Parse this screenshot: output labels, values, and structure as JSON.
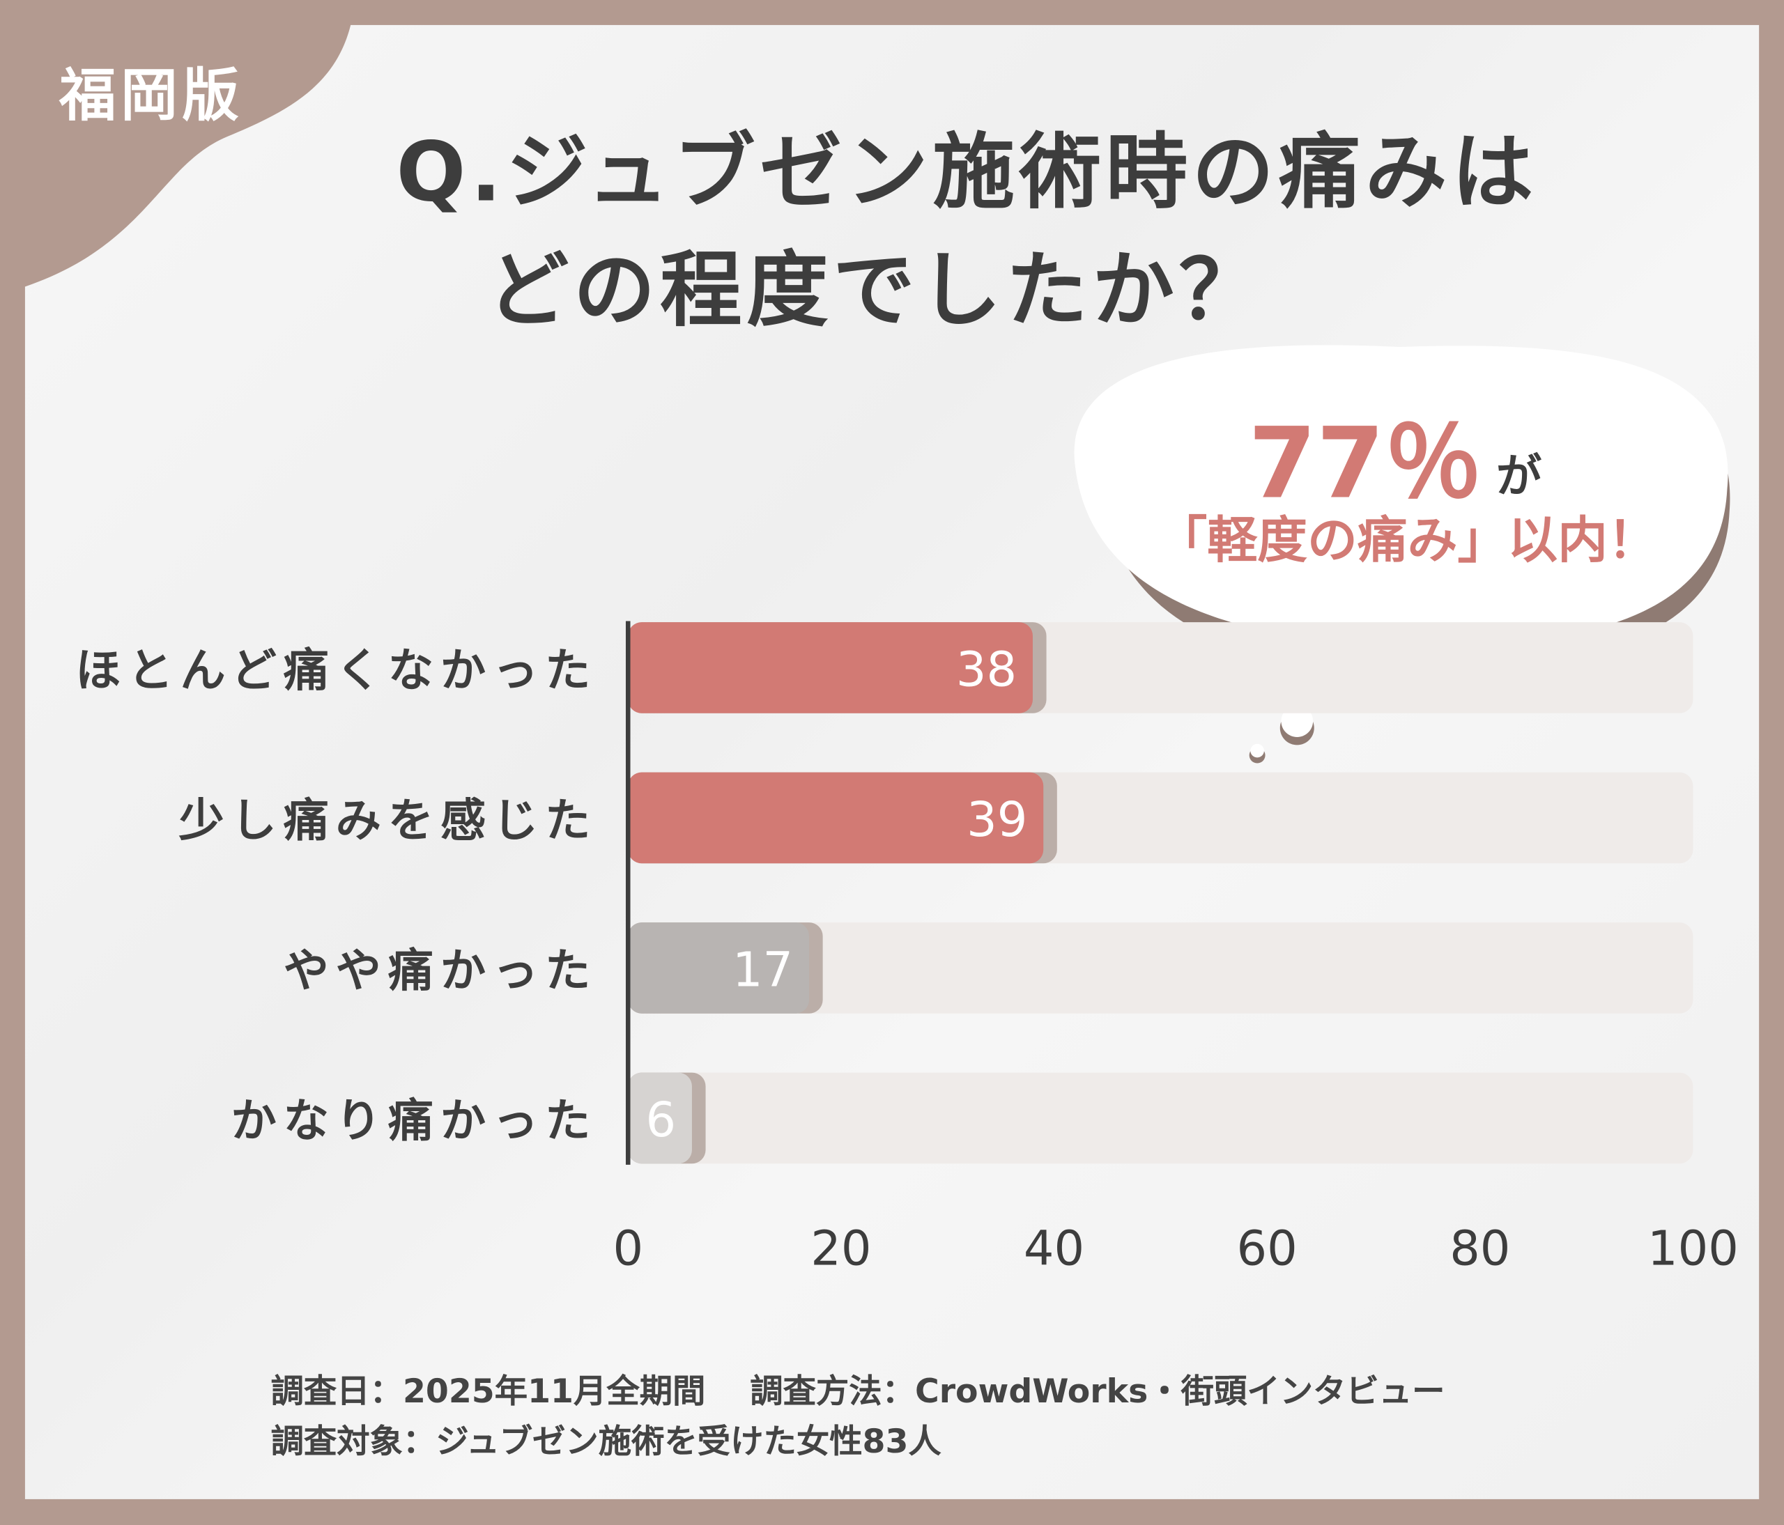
{
  "badge": "福岡版",
  "title": {
    "line1": "Q.ジュブゼン施術時の痛みは",
    "line2": "どの程度でしたか？"
  },
  "callout": {
    "percent": "77％",
    "particle": "が",
    "text": "「軽度の痛み」以内！"
  },
  "colors": {
    "frame": "#b39a90",
    "accent": "#d27a74",
    "gray": "#b8b4b2",
    "light_gray": "#d6d3d1",
    "track": "#efebe9",
    "text": "#3d3d3d"
  },
  "chart_data": {
    "type": "bar",
    "orientation": "horizontal",
    "categories": [
      "ほとんど痛くなかった",
      "少し痛みを感じた",
      "やや痛かった",
      "かなり痛かった"
    ],
    "values": [
      38,
      39,
      17,
      6
    ],
    "bar_colors": [
      "#d27a74",
      "#d27a74",
      "#b8b4b2",
      "#d6d3d1"
    ],
    "xlim": [
      0,
      100
    ],
    "xticks": [
      "0",
      "20",
      "40",
      "60",
      "80",
      "100"
    ],
    "grid": false
  },
  "footer": {
    "line1": "調査日：2025年11月全期間　 調査方法：CrowdWorks・街頭インタビュー",
    "line2": "調査対象：ジュブゼン施術を受けた女性83人"
  }
}
